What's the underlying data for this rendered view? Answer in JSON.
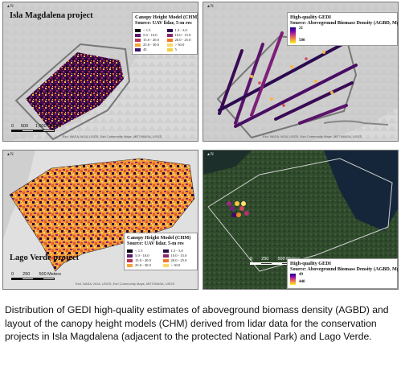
{
  "panels": {
    "top_left": {
      "title": "Isla Magdalena project",
      "legend_title_1": "Canopy Height Model (CHM)",
      "legend_title_2": "Source: UAV lidar, 5-m res",
      "legend_classes": [
        "< 1.5",
        "1.5 - 3.0",
        "5.0 - 10.0",
        "10.0 - 15.0",
        "15.0 - 20.0",
        "20.0 - 25.0",
        "25.0 - 30.0",
        "> 30.0",
        "45",
        "5"
      ],
      "legend_colors": [
        "#0a0510",
        "#2a0b4a",
        "#5c1a6e",
        "#8a2a6a",
        "#b83a58",
        "#f07a2a",
        "#f5a53a",
        "#f9d96a",
        "#3b0f70",
        "#f4d03f"
      ],
      "scale_labels": [
        "0",
        "500",
        "1,000 Meters"
      ],
      "credit": "Esri, NASA, NGA, USGS, Esri Community Maps, METI/NASA, USGS"
    },
    "top_right": {
      "legend_title_1": "High-quality GEDI",
      "legend_title_2": "Source: Aboveground Biomass Density (AGBD, Mg ha)",
      "legend_min": "21",
      "legend_max": "580",
      "credit": "Esri, NASA, NGA, USGS, Esri Community Maps, METI/NASA, USGS"
    },
    "bottom_left": {
      "title": "Lago Verde project",
      "legend_title_1": "Canopy Height Model (CHM)",
      "legend_title_2": "Source: UAV lidar, 5-m res",
      "legend_classes": [
        "< 1.5",
        "1.5 - 3.0",
        "5.0 - 10.0",
        "10.0 - 15.0",
        "15.0 - 20.0",
        "20.0 - 25.0",
        "25.0 - 30.0",
        "> 30.0"
      ],
      "legend_colors": [
        "#0a0510",
        "#2a0b4a",
        "#5c1a6e",
        "#8a2a6a",
        "#b83a58",
        "#f07a2a",
        "#f5a53a",
        "#f9d96a"
      ],
      "scale_labels": [
        "0",
        "250",
        "500 Meters"
      ],
      "credit": "Esri, NASA, NGA, USGS, Esri Community Maps, METI/NASA, USGS"
    },
    "bottom_right": {
      "legend_title_1": "High-quality GEDI",
      "legend_title_2": "Source: Aboveground Biomass Density (AGBD, Mg ha)",
      "legend_min": "49",
      "legend_max": "440",
      "scale_labels": [
        "0",
        "250",
        "500 Meters"
      ]
    }
  },
  "caption": "Distribution of GEDI high-quality estimates of aboveground biomass density (AGBD) and layout of the canopy height models (CHM) derived from lidar data for the conservation projects in Isla Magdalena (adjacent to the protected National Park) and Lago Verde."
}
